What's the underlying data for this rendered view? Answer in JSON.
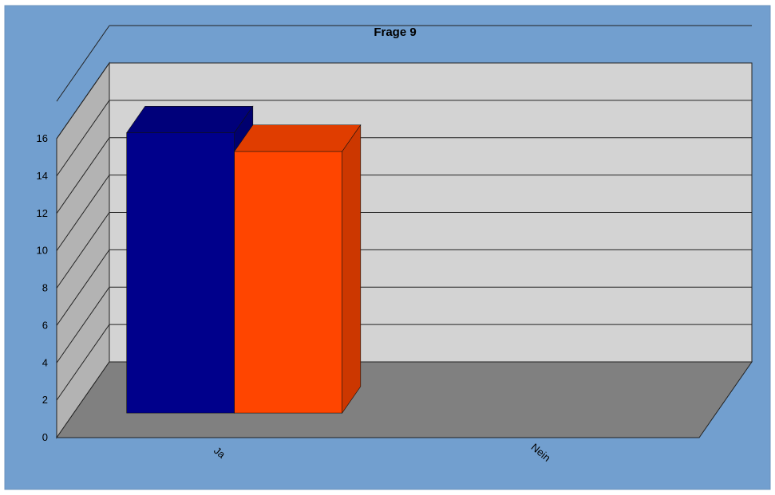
{
  "chart_data": {
    "type": "bar",
    "title": "Frage 9",
    "categories": [
      "Ja",
      "Nein"
    ],
    "series": [
      {
        "values": [
          15,
          0
        ],
        "color": "#00008b"
      },
      {
        "values": [
          14,
          0
        ],
        "color": "#ff4500"
      }
    ],
    "ylim": [
      0,
      16
    ],
    "yticks": [
      0,
      2,
      4,
      6,
      8,
      10,
      12,
      14,
      16
    ],
    "grid": true,
    "legend": "none",
    "three_d": true,
    "colors": {
      "background": "#729fcf",
      "back_wall": "#d3d3d3",
      "side_wall": "#b3b3b3",
      "floor": "#808080"
    }
  }
}
